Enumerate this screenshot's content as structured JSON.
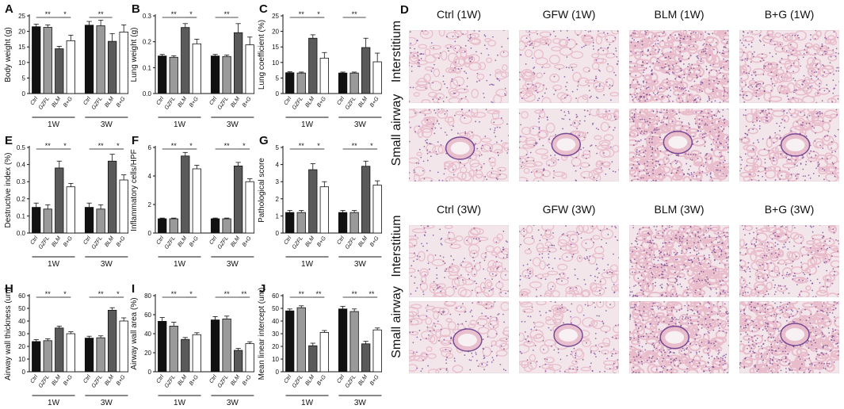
{
  "figure": {
    "colors": {
      "bar_colors": [
        "#111111",
        "#9a9a9a",
        "#5a5a5a",
        "#ffffff"
      ],
      "accent": "#111111"
    },
    "row_labels": [
      "Interstitium",
      "Small airway",
      "Interstitium",
      "Small airway"
    ],
    "column_labels": [
      "Ctrl (1W)",
      "GFW (1W)",
      "BLM (1W)",
      "B+G (1W)",
      "Ctrl (3W)",
      "GFW (3W)",
      "BLM (3W)",
      "B+G (3W)"
    ],
    "panel_d_letter": "D",
    "tissue_colors": {
      "background": "#f3e6ea",
      "stroma": "#e9bccb",
      "nuclei": "#6a3b8c",
      "vessel": "#f7f1f3"
    }
  },
  "chart_data": [
    {
      "type": "bar",
      "panel": "A",
      "ylabel": "Body weight (g)",
      "ylim": [
        0,
        25
      ],
      "yticks": [
        "0",
        "5",
        "10",
        "15",
        "20",
        "25"
      ],
      "yticks_values": [
        0,
        5,
        10,
        15,
        20,
        25
      ],
      "categories": [
        "Ctrl",
        "GZFL",
        "BLM",
        "B+G",
        "Ctrl",
        "GZFL",
        "BLM",
        "B+G"
      ],
      "groups": [
        "1W",
        "3W"
      ],
      "values": [
        21.5,
        21.3,
        14.4,
        17.0,
        22.0,
        21.8,
        16.8,
        19.8
      ],
      "errors": [
        0.8,
        0.8,
        0.8,
        1.8,
        1.2,
        1.8,
        2.5,
        2.3
      ],
      "significance": [
        {
          "from": 0,
          "to": 2,
          "label": "**"
        },
        {
          "from": 2,
          "to": 3,
          "label": "*"
        },
        {
          "from": 4,
          "to": 6,
          "label": "**"
        }
      ]
    },
    {
      "type": "bar",
      "panel": "B",
      "ylabel": "Lung weight (g)",
      "ylim": [
        0,
        0.3
      ],
      "yticks": [
        "0.0",
        "0.1",
        "0.2",
        "0.3"
      ],
      "yticks_values": [
        0,
        0.1,
        0.2,
        0.3
      ],
      "categories": [
        "Ctrl",
        "GZFL",
        "BLM",
        "B+G",
        "Ctrl",
        "GZFL",
        "BLM",
        "B+G"
      ],
      "groups": [
        "1W",
        "3W"
      ],
      "values": [
        0.145,
        0.14,
        0.255,
        0.192,
        0.145,
        0.143,
        0.235,
        0.188
      ],
      "errors": [
        0.006,
        0.006,
        0.015,
        0.018,
        0.006,
        0.006,
        0.035,
        0.03
      ],
      "significance": [
        {
          "from": 0,
          "to": 2,
          "label": "**"
        },
        {
          "from": 2,
          "to": 3,
          "label": "*"
        },
        {
          "from": 4,
          "to": 6,
          "label": "**"
        }
      ]
    },
    {
      "type": "bar",
      "panel": "C",
      "ylabel": "Lung coefficient (%)",
      "ylim": [
        0,
        25
      ],
      "yticks": [
        "0",
        "5",
        "10",
        "15",
        "20",
        "25"
      ],
      "yticks_values": [
        0,
        5,
        10,
        15,
        20,
        25
      ],
      "categories": [
        "Ctrl",
        "GZFL",
        "BLM",
        "B+G",
        "Ctrl",
        "GZFL",
        "BLM",
        "B+G"
      ],
      "groups": [
        "1W",
        "3W"
      ],
      "values": [
        6.7,
        6.6,
        17.8,
        11.4,
        6.6,
        6.6,
        14.8,
        10.2
      ],
      "errors": [
        0.3,
        0.3,
        1.1,
        1.8,
        0.3,
        0.3,
        3.0,
        2.8
      ],
      "significance": [
        {
          "from": 0,
          "to": 2,
          "label": "**"
        },
        {
          "from": 2,
          "to": 3,
          "label": "*"
        },
        {
          "from": 4,
          "to": 6,
          "label": "**"
        }
      ]
    },
    {
      "type": "bar",
      "panel": "E",
      "ylabel": "Destructive index (%)",
      "ylim": [
        0,
        0.5
      ],
      "yticks": [
        "0.0",
        "0.1",
        "0.2",
        "0.3",
        "0.4",
        "0.5"
      ],
      "yticks_values": [
        0,
        0.1,
        0.2,
        0.3,
        0.4,
        0.5
      ],
      "categories": [
        "Ctrl",
        "GZFL",
        "BLM",
        "B+G",
        "Ctrl",
        "GZFL",
        "BLM",
        "B+G"
      ],
      "groups": [
        "1W",
        "3W"
      ],
      "values": [
        0.15,
        0.14,
        0.38,
        0.27,
        0.15,
        0.14,
        0.42,
        0.31
      ],
      "errors": [
        0.025,
        0.025,
        0.04,
        0.02,
        0.025,
        0.025,
        0.04,
        0.03
      ],
      "significance": [
        {
          "from": 0,
          "to": 2,
          "label": "**"
        },
        {
          "from": 2,
          "to": 3,
          "label": "*"
        },
        {
          "from": 4,
          "to": 6,
          "label": "**"
        },
        {
          "from": 6,
          "to": 7,
          "label": "*"
        }
      ]
    },
    {
      "type": "bar",
      "panel": "F",
      "ylabel": "Inflammatory cells/HPF",
      "ylim": [
        0,
        6
      ],
      "yticks": [
        "0",
        "2",
        "4",
        "6"
      ],
      "yticks_values": [
        0,
        2,
        4,
        6
      ],
      "categories": [
        "Ctrl",
        "GZFL",
        "BLM",
        "B+G",
        "Ctrl",
        "GZFL",
        "BLM",
        "B+G"
      ],
      "groups": [
        "1W",
        "3W"
      ],
      "values": [
        1.0,
        1.0,
        5.4,
        4.5,
        1.0,
        1.0,
        4.7,
        3.6
      ],
      "errors": [
        0.05,
        0.05,
        0.25,
        0.25,
        0.05,
        0.05,
        0.25,
        0.2
      ],
      "significance": [
        {
          "from": 0,
          "to": 2,
          "label": "**"
        },
        {
          "from": 2,
          "to": 3,
          "label": "*"
        },
        {
          "from": 4,
          "to": 6,
          "label": "**"
        },
        {
          "from": 6,
          "to": 7,
          "label": "*"
        }
      ]
    },
    {
      "type": "bar",
      "panel": "G",
      "ylabel": "Pathological score",
      "ylim": [
        0,
        5
      ],
      "yticks": [
        "0",
        "1",
        "2",
        "3",
        "4",
        "5"
      ],
      "yticks_values": [
        0,
        1,
        2,
        3,
        4,
        5
      ],
      "categories": [
        "Ctrl",
        "GZFL",
        "BLM",
        "B+G",
        "Ctrl",
        "GZFL",
        "BLM",
        "B+G"
      ],
      "groups": [
        "1W",
        "3W"
      ],
      "values": [
        1.2,
        1.2,
        3.7,
        2.7,
        1.2,
        1.2,
        3.9,
        2.8
      ],
      "errors": [
        0.12,
        0.12,
        0.35,
        0.3,
        0.12,
        0.12,
        0.3,
        0.25
      ],
      "significance": [
        {
          "from": 0,
          "to": 2,
          "label": "**"
        },
        {
          "from": 2,
          "to": 3,
          "label": "*"
        },
        {
          "from": 4,
          "to": 6,
          "label": "**"
        },
        {
          "from": 6,
          "to": 7,
          "label": "*"
        }
      ]
    },
    {
      "type": "bar",
      "panel": "H",
      "ylabel": "Airway wall thickness (um)",
      "ylim": [
        0,
        60
      ],
      "yticks": [
        "0",
        "10",
        "20",
        "30",
        "40",
        "50",
        "60"
      ],
      "yticks_values": [
        0,
        10,
        20,
        30,
        40,
        50,
        60
      ],
      "categories": [
        "Ctrl",
        "GZFL",
        "BLM",
        "B+G",
        "Ctrl",
        "GZFL",
        "BLM",
        "B+G"
      ],
      "groups": [
        "1W",
        "3W"
      ],
      "values": [
        23.8,
        24.5,
        34.5,
        30.0,
        26.5,
        26.8,
        48.5,
        40.0
      ],
      "errors": [
        1.5,
        1.5,
        1.5,
        1.5,
        1.5,
        1.5,
        2.0,
        2.5
      ],
      "significance": [
        {
          "from": 0,
          "to": 2,
          "label": "**"
        },
        {
          "from": 2,
          "to": 3,
          "label": "*"
        },
        {
          "from": 4,
          "to": 6,
          "label": "**"
        },
        {
          "from": 6,
          "to": 7,
          "label": "*"
        }
      ]
    },
    {
      "type": "bar",
      "panel": "I",
      "ylabel": "Airway wall area (%)",
      "ylim": [
        0,
        80
      ],
      "yticks": [
        "0",
        "20",
        "40",
        "60",
        "80"
      ],
      "yticks_values": [
        0,
        20,
        40,
        60,
        80
      ],
      "categories": [
        "Ctrl",
        "GZFL",
        "BLM",
        "B+G",
        "Ctrl",
        "GZFL",
        "BLM",
        "B+G"
      ],
      "groups": [
        "1W",
        "3W"
      ],
      "values": [
        53.0,
        48.0,
        34.0,
        39.0,
        54.5,
        55.5,
        22.5,
        29.5
      ],
      "errors": [
        4.0,
        4.0,
        2.0,
        2.0,
        3.5,
        3.0,
        2.0,
        2.0
      ],
      "significance": [
        {
          "from": 0,
          "to": 2,
          "label": "**"
        },
        {
          "from": 2,
          "to": 3,
          "label": "*"
        },
        {
          "from": 4,
          "to": 6,
          "label": "**"
        },
        {
          "from": 6,
          "to": 7,
          "label": "**"
        }
      ]
    },
    {
      "type": "bar",
      "panel": "J",
      "ylabel": "Mean linear intercept (um)",
      "ylim": [
        0,
        60
      ],
      "yticks": [
        "0",
        "10",
        "20",
        "30",
        "40",
        "50",
        "60"
      ],
      "yticks_values": [
        0,
        10,
        20,
        30,
        40,
        50,
        60
      ],
      "categories": [
        "Ctrl",
        "GZFL",
        "BLM",
        "B+G",
        "Ctrl",
        "GZFL",
        "BLM",
        "B+G"
      ],
      "groups": [
        "1W",
        "3W"
      ],
      "values": [
        48.0,
        50.5,
        20.5,
        31.0,
        49.5,
        47.5,
        22.0,
        33.0
      ],
      "errors": [
        1.5,
        1.5,
        2.0,
        1.5,
        2.0,
        2.0,
        2.0,
        1.5
      ],
      "significance": [
        {
          "from": 0,
          "to": 2,
          "label": "**"
        },
        {
          "from": 2,
          "to": 3,
          "label": "**"
        },
        {
          "from": 4,
          "to": 6,
          "label": "**"
        },
        {
          "from": 6,
          "to": 7,
          "label": "**"
        }
      ]
    }
  ]
}
